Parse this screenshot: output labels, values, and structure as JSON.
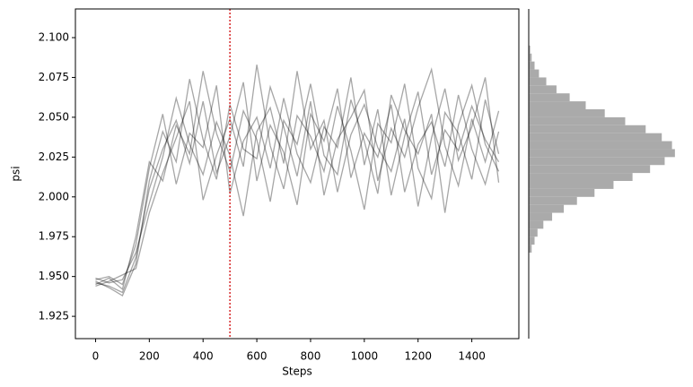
{
  "chart_data": [
    {
      "type": "line",
      "x_label": "Steps",
      "y_label": "psi",
      "x": [
        0,
        50,
        100,
        150,
        200,
        250,
        300,
        350,
        400,
        450,
        500,
        550,
        600,
        650,
        700,
        750,
        800,
        850,
        900,
        950,
        1000,
        1050,
        1100,
        1150,
        1200,
        1250,
        1300,
        1350,
        1400,
        1450,
        1500
      ],
      "series": [
        {
          "color": "#000000",
          "values": [
            1.946,
            1.944,
            1.94,
            1.962,
            2.005,
            2.03,
            2.048,
            2.021,
            2.06,
            2.015,
            2.038,
            2.072,
            2.01,
            2.045,
            2.028,
            1.995,
            2.052,
            2.035,
            2.068,
            2.012,
            2.04,
            2.025,
            2.058,
            2.003,
            2.033,
            2.047,
            2.019,
            2.064,
            2.03,
            2.008,
            2.041
          ]
        },
        {
          "color": "#000000",
          "values": [
            1.948,
            1.95,
            1.945,
            1.97,
            2.018,
            2.052,
            2.008,
            2.04,
            2.031,
            2.07,
            2.002,
            2.035,
            2.05,
            2.018,
            2.062,
            2.027,
            2.009,
            2.044,
            2.031,
            2.075,
            2.02,
            2.055,
            2.001,
            2.038,
            2.066,
            2.014,
            2.042,
            2.029,
            2.057,
            2.036,
            2.022
          ]
        },
        {
          "color": "#000000",
          "values": [
            1.944,
            1.947,
            1.951,
            1.955,
            1.99,
            2.015,
            2.037,
            2.06,
            1.998,
            2.026,
            2.049,
            2.019,
            2.083,
            2.032,
            2.005,
            2.051,
            2.038,
            2.016,
            2.057,
            2.029,
            1.992,
            2.046,
            2.034,
            2.071,
            2.018,
            1.999,
            2.053,
            2.04,
            2.011,
            2.061,
            2.027
          ]
        },
        {
          "color": "#000000",
          "values": [
            1.947,
            1.943,
            1.938,
            1.958,
            2.01,
            2.041,
            2.022,
            2.074,
            2.036,
            2.011,
            2.058,
            2.03,
            2.024,
            2.069,
            2.044,
            2.013,
            2.06,
            2.001,
            2.036,
            2.05,
            2.067,
            2.01,
            2.043,
            2.025,
            2.056,
            2.08,
            2.032,
            2.007,
            2.049,
            2.022,
            2.054
          ]
        },
        {
          "color": "#000000",
          "values": [
            1.949,
            1.946,
            1.948,
            1.965,
            1.996,
            2.025,
            2.062,
            2.033,
            2.014,
            2.047,
            2.026,
            1.988,
            2.041,
            2.056,
            2.021,
            2.079,
            2.03,
            2.048,
            2.003,
            2.039,
            2.058,
            2.031,
            2.016,
            2.049,
            1.994,
            2.037,
            2.068,
            2.023,
            2.044,
            2.075,
            2.009
          ]
        },
        {
          "color": "#000000",
          "values": [
            1.945,
            1.949,
            1.942,
            1.975,
            2.022,
            2.01,
            2.045,
            2.027,
            2.079,
            2.04,
            2.016,
            2.054,
            2.036,
            1.997,
            2.048,
            2.033,
            2.071,
            2.026,
            2.014,
            2.061,
            2.035,
            2.002,
            2.064,
            2.042,
            2.027,
            2.052,
            1.99,
            2.045,
            2.07,
            2.033,
            2.016
          ]
        }
      ],
      "alpha": 0.35,
      "vline": {
        "x": 500,
        "color": "#d62728",
        "style": "dotted"
      },
      "xlim": [
        -75,
        1575
      ],
      "xticks": [
        0,
        200,
        400,
        600,
        800,
        1000,
        1200,
        1400
      ],
      "ylim": [
        1.911,
        2.118
      ],
      "yticks": [
        1.925,
        {
          "value": 1.95,
          "label": "1.950"
        },
        1.975,
        {
          "value": 2.0,
          "label": "2.000"
        },
        2.025,
        {
          "value": 2.05,
          "label": "2.050"
        },
        2.075,
        {
          "value": 2.1,
          "label": "2.100"
        }
      ]
    },
    {
      "type": "histogram",
      "orientation": "horizontal",
      "color": "#aaaaaa",
      "bins": [
        1.965,
        1.97,
        1.975,
        1.98,
        1.985,
        1.99,
        1.995,
        2.0,
        2.005,
        2.01,
        2.015,
        2.02,
        2.025,
        2.03,
        2.035,
        2.04,
        2.045,
        2.05,
        2.055,
        2.06,
        2.065,
        2.07,
        2.075,
        2.08,
        2.085,
        2.09,
        2.095
      ],
      "counts": [
        2,
        4,
        6,
        10,
        16,
        24,
        33,
        45,
        58,
        71,
        83,
        93,
        100,
        98,
        91,
        80,
        66,
        52,
        39,
        28,
        19,
        12,
        7,
        4,
        2,
        1
      ],
      "xlim": [
        0,
        105
      ],
      "ylim": [
        1.911,
        2.118
      ]
    }
  ]
}
